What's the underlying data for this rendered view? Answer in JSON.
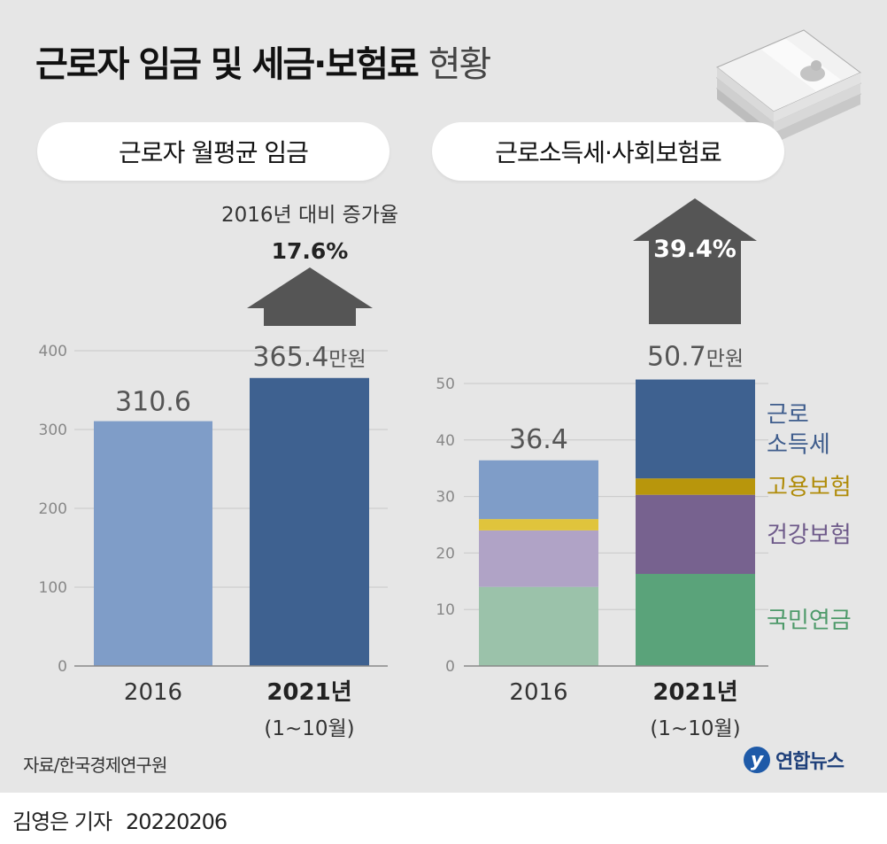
{
  "title_bold": "근로자 임금 및 세금·보험료",
  "title_light": "현황",
  "source": "자료/한국경제연구원",
  "reporter": "김영은 기자",
  "date": "20220206",
  "logo": "연합뉴스",
  "chart_data": [
    {
      "type": "bar",
      "title": "근로자 월평균 임금",
      "categories": [
        "2016",
        "2021년"
      ],
      "category_sublabels": [
        "",
        "(1~10월)"
      ],
      "values": [
        310.6,
        365.4
      ],
      "value_labels": [
        "310.6",
        "365.4"
      ],
      "value_unit": "만원",
      "ylim": [
        0,
        400
      ],
      "yticks": [
        0,
        100,
        200,
        300,
        400
      ],
      "grid": true,
      "colors": [
        "#7f9dc8",
        "#3e6190"
      ],
      "annotation": {
        "label": "2016년 대비 증가율",
        "value": "17.6%"
      }
    },
    {
      "type": "bar",
      "stacked": true,
      "title": "근로소득세·사회보험료",
      "categories": [
        "2016",
        "2021년"
      ],
      "category_sublabels": [
        "",
        "(1~10월)"
      ],
      "totals": [
        36.4,
        50.7
      ],
      "total_labels": [
        "36.4",
        "50.7"
      ],
      "value_unit": "만원",
      "ylim": [
        0,
        50
      ],
      "yticks": [
        0,
        10,
        20,
        30,
        40,
        50
      ],
      "grid": true,
      "series": [
        {
          "name": "국민연금",
          "values": [
            14.0,
            16.3
          ],
          "colors": [
            "#9bc2aa",
            "#5aa37a"
          ],
          "label_color": "#4e9a6a"
        },
        {
          "name": "건강보험",
          "values": [
            10.0,
            14.0
          ],
          "colors": [
            "#b0a3c6",
            "#77628f"
          ],
          "label_color": "#6e5a8a"
        },
        {
          "name": "고용보험",
          "values": [
            2.0,
            2.9
          ],
          "colors": [
            "#e0c43c",
            "#b8960c"
          ],
          "label_color": "#b08c0a"
        },
        {
          "name": "근로\n소득세",
          "values": [
            10.4,
            17.5
          ],
          "colors": [
            "#7f9dc8",
            "#3e6190"
          ],
          "label_color": "#3e5c8c"
        }
      ],
      "annotation": {
        "value": "39.4%"
      }
    }
  ]
}
